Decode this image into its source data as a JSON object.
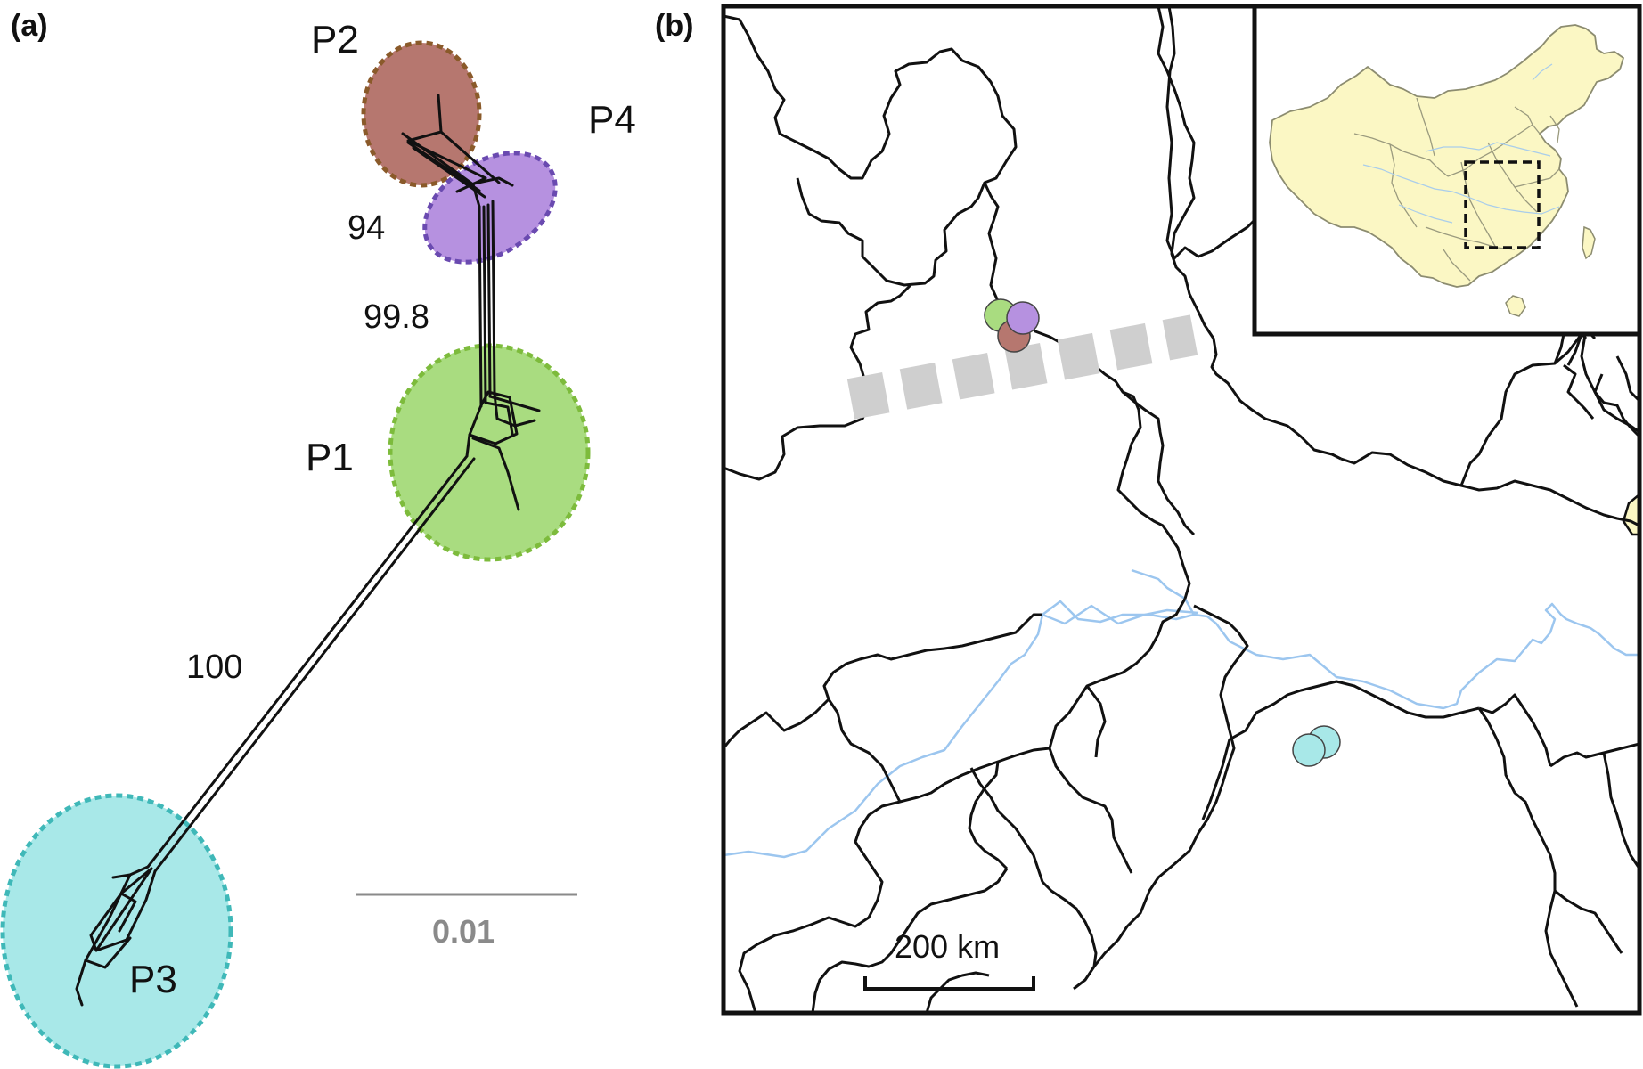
{
  "panel_a": {
    "label": "(a)",
    "clusters": [
      {
        "name": "P1",
        "color": "#a9dc80",
        "border": "#7dbb3c"
      },
      {
        "name": "P2",
        "color": "#b6776f",
        "border": "#8a5a2a"
      },
      {
        "name": "P3",
        "color": "#a8e8e8",
        "border": "#3fb8b8"
      },
      {
        "name": "P4",
        "color": "#b691e0",
        "border": "#6a4ab0"
      }
    ],
    "support_values": [
      "94",
      "99.8",
      "100"
    ],
    "scale_bar": "0.01"
  },
  "panel_b": {
    "label": "(b)",
    "scale_bar": "200 km",
    "sample_points": [
      {
        "population": "P1",
        "color": "#a9dc80"
      },
      {
        "population": "P4",
        "color": "#b691e0"
      },
      {
        "population": "P2",
        "color": "#b6776f"
      },
      {
        "population": "P3",
        "color": "#a8e8e8"
      },
      {
        "population": "P3",
        "color": "#a8e8e8"
      }
    ],
    "inset": {
      "land_color": "#fbf7c4",
      "highlight": "dashed-rectangle"
    }
  }
}
